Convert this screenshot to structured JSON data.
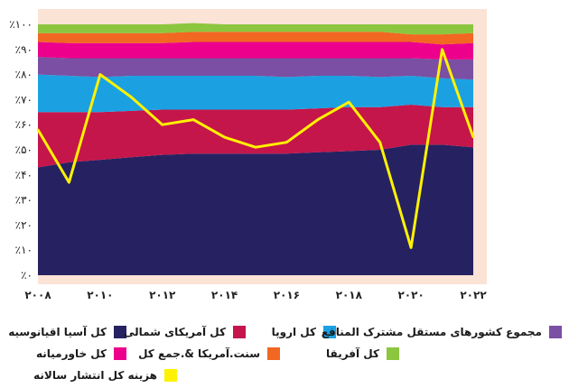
{
  "chart_data": {
    "type": "area",
    "x": [
      2008,
      2009,
      2010,
      2011,
      2012,
      2013,
      2014,
      2015,
      2016,
      2017,
      2018,
      2019,
      2020,
      2021,
      2022
    ],
    "ylim": [
      0,
      100
    ],
    "y_ticks": [
      "٪۰",
      "٪۱۰",
      "٪۲۰",
      "٪۳۰",
      "٪۴۰",
      "٪۵۰",
      "٪۶۰",
      "٪۷۰",
      "٪۸۰",
      "٪۹۰",
      "٪۱۰۰"
    ],
    "x_ticks": [
      {
        "value": 2008,
        "label": "۲۰۰۸"
      },
      {
        "value": 2010,
        "label": "۲۰۱۰"
      },
      {
        "value": 2012,
        "label": "۲۰۱۲"
      },
      {
        "value": 2014,
        "label": "۲۰۱۴"
      },
      {
        "value": 2016,
        "label": "۲۰۱۶"
      },
      {
        "value": 2018,
        "label": "۲۰۱۸"
      },
      {
        "value": 2020,
        "label": "۲۰۲۰"
      },
      {
        "value": 2022,
        "label": "۲۰۲۲"
      }
    ],
    "series": [
      {
        "name": "کل آسیا اقیانوسیه",
        "color": "#262262",
        "values": [
          43,
          45,
          46,
          47,
          48,
          48.5,
          48.5,
          48.5,
          48.5,
          49,
          49.5,
          50,
          52,
          52,
          51
        ]
      },
      {
        "name": "کل آمریکای شمالی",
        "color": "#c4164b",
        "values": [
          22,
          20,
          19,
          18.5,
          18,
          17.5,
          17.5,
          17.5,
          17.5,
          17.5,
          17.5,
          17,
          16,
          15,
          16
        ]
      },
      {
        "name": "کل اروپا",
        "color": "#1ba1e2",
        "values": [
          15,
          14.5,
          14,
          14,
          13.5,
          13.5,
          13.5,
          13.5,
          13,
          13,
          12.5,
          12,
          11.5,
          11.5,
          11
        ]
      },
      {
        "name": "مجموع کشورهای مستقل مشترک المنافع",
        "color": "#7b4fa3",
        "values": [
          7,
          7,
          7.5,
          7,
          7,
          7,
          7,
          7,
          7.5,
          7,
          7,
          7.5,
          7,
          7.5,
          8
        ]
      },
      {
        "name": "کل خاورمیانه",
        "color": "#ec008c",
        "values": [
          6,
          6,
          6,
          6,
          6,
          6.5,
          6.5,
          6.5,
          6.5,
          6.5,
          6.5,
          6.5,
          6.5,
          6,
          6.5
        ]
      },
      {
        "name": "سنت.آمریکا &.جمع کل",
        "color": "#f26722",
        "values": [
          3.5,
          4,
          4,
          4,
          4,
          4,
          4,
          4,
          4,
          4,
          4,
          4,
          3,
          4,
          4
        ]
      },
      {
        "name": "کل آفریقا",
        "color": "#8cc63f",
        "values": [
          3.5,
          3.5,
          3.5,
          3.5,
          3.5,
          3.5,
          3,
          3,
          3,
          3,
          3,
          3,
          4,
          4,
          3.5
        ]
      }
    ],
    "line_series": {
      "name": "هزینه کل انتشار سالانه",
      "color": "#fff200",
      "values": [
        58,
        37,
        80,
        71,
        60,
        62,
        55,
        51,
        53,
        62,
        69,
        53,
        11,
        90,
        55
      ]
    },
    "grid": false
  },
  "legend": {
    "items": [
      {
        "label": "کل آسیا اقیانوسیه",
        "color": "#262262"
      },
      {
        "label": "کل آمریکای شمالی",
        "color": "#c4164b"
      },
      {
        "label": "کل اروپا",
        "color": "#1ba1e2"
      },
      {
        "label": "مجموع کشورهای مستقل مشترک المنافع",
        "color": "#7b4fa3"
      },
      {
        "label": "کل خاورمیانه",
        "color": "#ec008c"
      },
      {
        "label": "سنت.آمریکا &.جمع کل",
        "color": "#f26722"
      },
      {
        "label": "کل آفریقا",
        "color": "#8cc63f"
      },
      {
        "label": "هزینه کل انتشار سالانه",
        "color": "#fff200"
      }
    ]
  }
}
